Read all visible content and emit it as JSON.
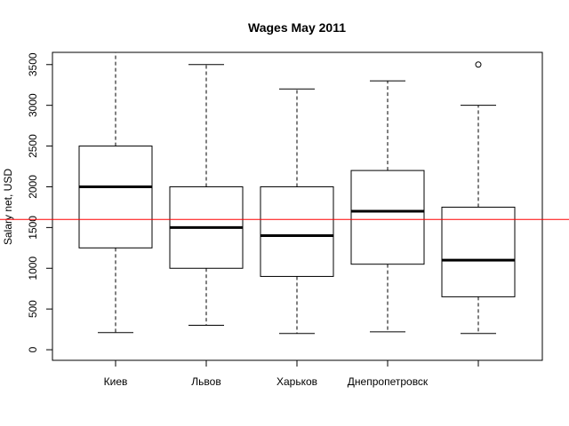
{
  "chart_data": {
    "type": "box",
    "title": "Wages May 2011",
    "xlabel": "",
    "ylabel": "Salary net, USD",
    "ylim": [
      -130,
      3650
    ],
    "yticks": [
      0,
      500,
      1000,
      1500,
      2000,
      2500,
      3000,
      3500
    ],
    "ytick_labels": [
      "0",
      "500",
      "1000",
      "1500",
      "2000",
      "2500",
      "3000",
      "3500"
    ],
    "categories": [
      "Киев",
      "Львов",
      "Харьков",
      "Днепропетровск",
      ""
    ],
    "boxes": [
      {
        "whisker_low": 210,
        "q1": 1250,
        "median": 2000,
        "q3": 2500,
        "whisker_high": 3650,
        "outliers": []
      },
      {
        "whisker_low": 300,
        "q1": 1000,
        "median": 1500,
        "q3": 2000,
        "whisker_high": 3500,
        "outliers": []
      },
      {
        "whisker_low": 200,
        "q1": 900,
        "median": 1400,
        "q3": 2000,
        "whisker_high": 3200,
        "outliers": []
      },
      {
        "whisker_low": 220,
        "q1": 1050,
        "median": 1700,
        "q3": 2200,
        "whisker_high": 3300,
        "outliers": []
      },
      {
        "whisker_low": 200,
        "q1": 650,
        "median": 1100,
        "q3": 1750,
        "whisker_high": 3000,
        "outliers": [
          3500
        ]
      }
    ],
    "reference_line": {
      "value": 1600,
      "color": "#ff0000"
    },
    "grid": false,
    "colors": {
      "box": "#000000",
      "reference": "#ff0000"
    }
  }
}
